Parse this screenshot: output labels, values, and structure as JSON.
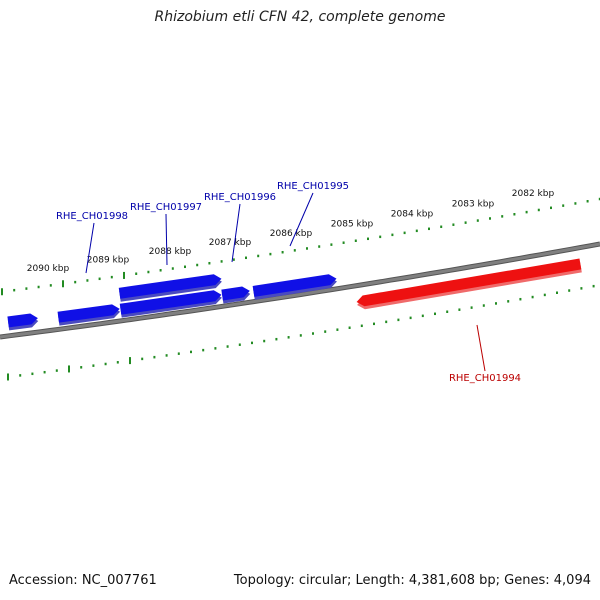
{
  "title": "Rhizobium etli CFN 42, complete genome",
  "footer": {
    "accession": "Accession: NC_007761",
    "summary": "Topology: circular; Length: 4,381,608 bp; Genes: 4,094"
  },
  "colors": {
    "forward_gene": "#1010e6",
    "reverse_gene": "#ee1111",
    "backbone": "#808080",
    "ticks": "#228b22",
    "forward_label": "#0000aa",
    "reverse_label": "#bb0000"
  },
  "tick_labels": [
    "2090 kbp",
    "2089 kbp",
    "2088 kbp",
    "2087 kbp",
    "2086 kbp",
    "2085 kbp",
    "2084 kbp",
    "2083 kbp",
    "2082 kbp"
  ],
  "gene_labels": [
    "RHE_CH01998",
    "RHE_CH01997",
    "RHE_CH01996",
    "RHE_CH01995",
    "RHE_CH01994"
  ]
}
